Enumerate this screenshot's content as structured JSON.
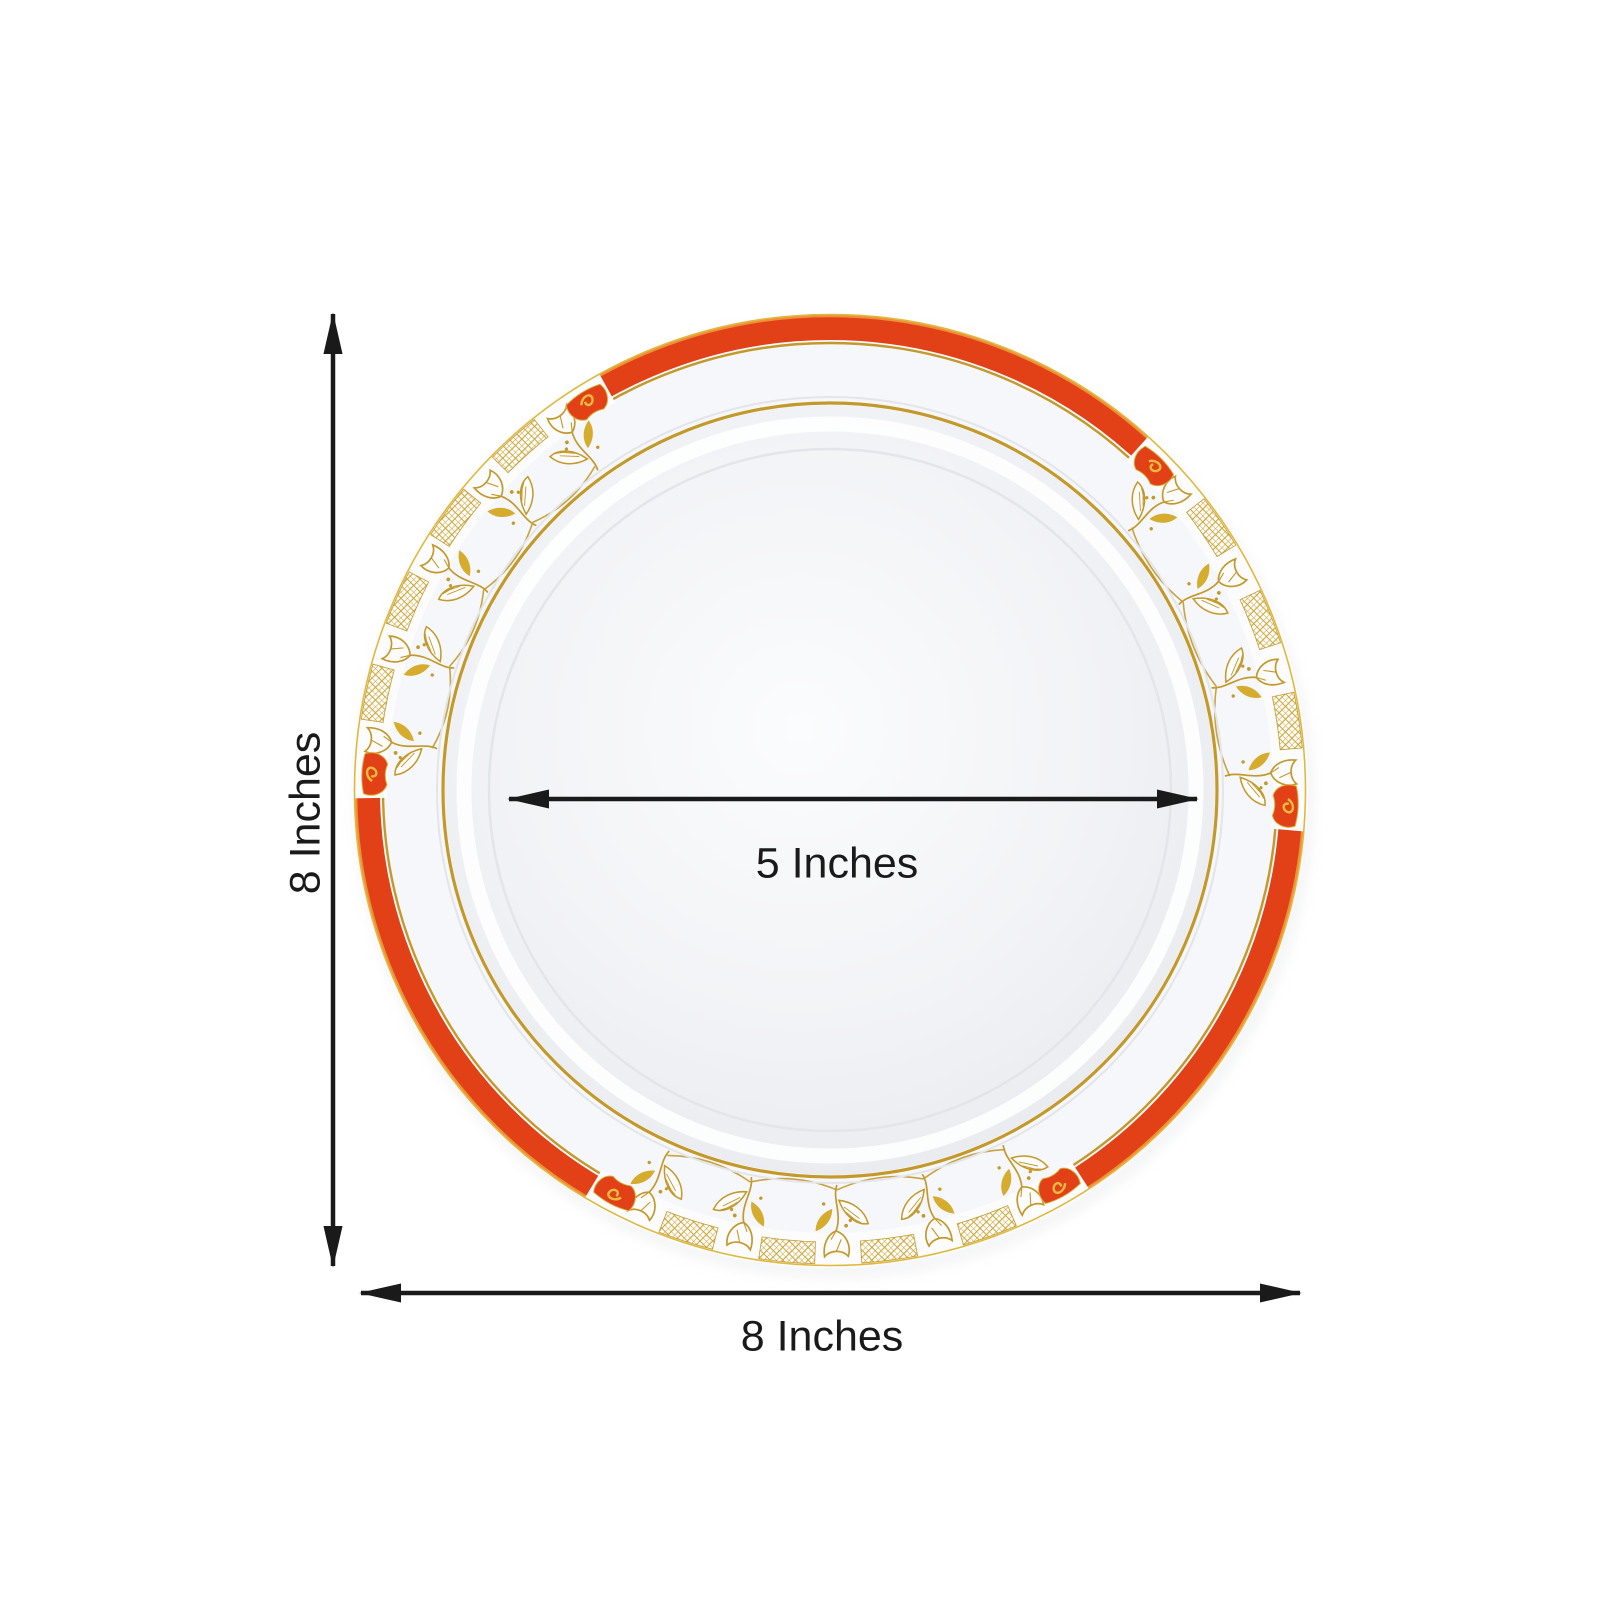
{
  "page": {
    "background": "#FFFFFF"
  },
  "diagram": {
    "subject": "Round white plate with red rim band and gold floral trim, annotated with size dimensions",
    "labels": {
      "height": "8 Inches",
      "width": "8 Inches",
      "inner_diameter": "5 Inches"
    },
    "colors": {
      "rim_red": "#E24118",
      "rim_red_highlight": "#F2983B",
      "gold": "#C3992B",
      "gold_fill": "#D6AC2F",
      "lattice_gold": "#CDA735",
      "arrow": "#1A1A1A",
      "plate_white": "#FBFCFD"
    }
  }
}
